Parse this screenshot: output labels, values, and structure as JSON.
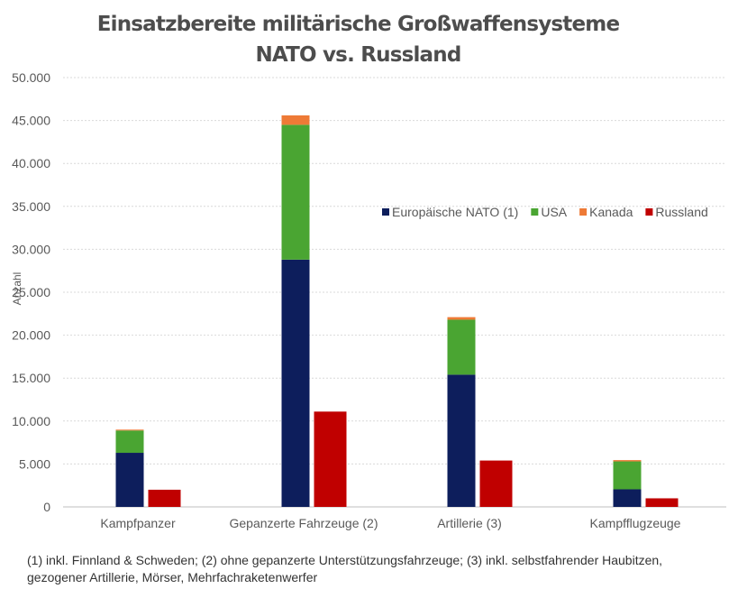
{
  "chart_data": {
    "type": "bar",
    "stacked": true,
    "title": "Einsatzbereite militärische Großwaffensysteme",
    "subtitle": "NATO vs. Russland",
    "ylabel": "Anzahl",
    "xlabel": "",
    "ylim": [
      0,
      50000
    ],
    "yticks": [
      "0",
      "5.000",
      "10.000",
      "15.000",
      "20.000",
      "25.000",
      "30.000",
      "35.000",
      "40.000",
      "45.000",
      "50.000"
    ],
    "categories": [
      "Kampfpanzer",
      "Gepanzerte Fahrzeuge (2)",
      "Artillerie (3)",
      "Kampfflugzeuge"
    ],
    "series": [
      {
        "name": "Europäische NATO (1)",
        "stack": "NATO",
        "color": "#0d1e5c",
        "values": [
          6300,
          28800,
          15400,
          2050
        ]
      },
      {
        "name": "USA",
        "stack": "NATO",
        "color": "#4aa532",
        "values": [
          2600,
          15700,
          6400,
          3250
        ]
      },
      {
        "name": "Kanada",
        "stack": "NATO",
        "color": "#ee7a36",
        "values": [
          100,
          1100,
          300,
          150
        ]
      },
      {
        "name": "Russland",
        "stack": "Russland",
        "color": "#c00000",
        "values": [
          2000,
          11100,
          5400,
          1000
        ]
      }
    ],
    "grid": true,
    "legend": "inside-top-right"
  },
  "footnote": "(1) inkl. Finnland & Schweden; (2) ohne gepanzerte Unterstützungsfahrzeuge; (3) inkl. selbstfahrender Haubitzen, gezogener Artillerie, Mörser, Mehrfachraketenwerfer"
}
